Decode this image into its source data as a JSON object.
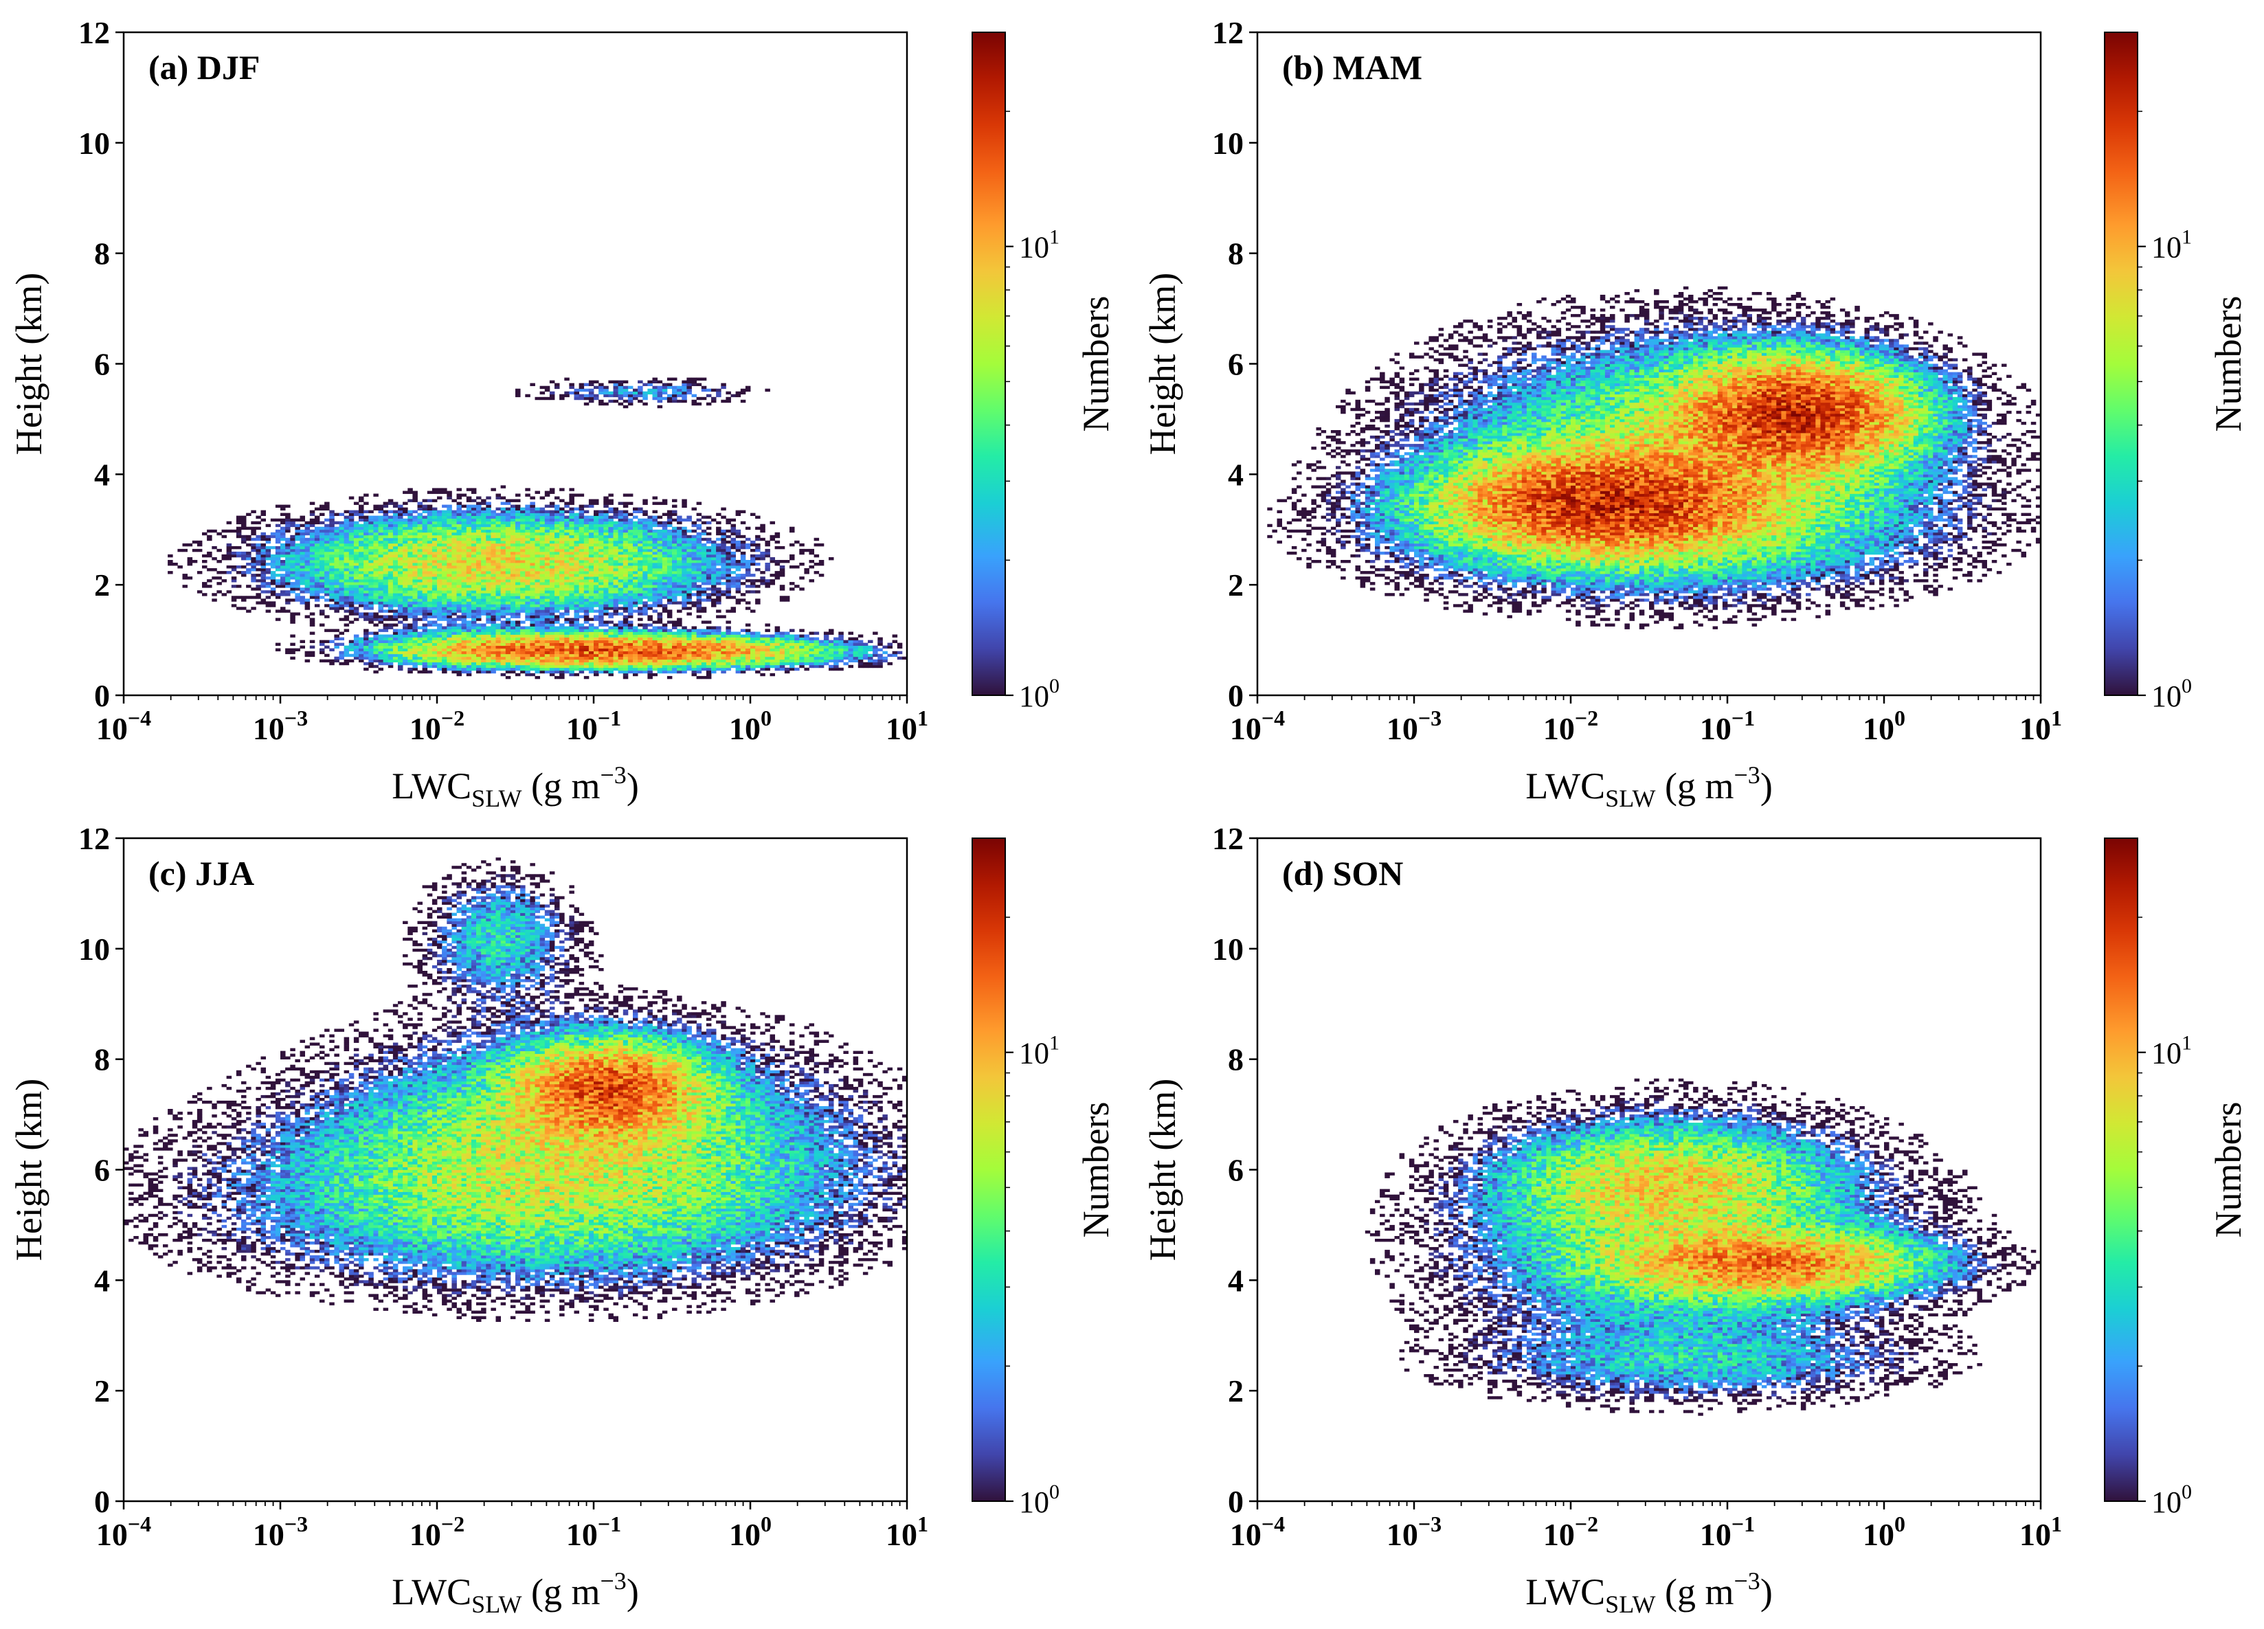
{
  "chart_data": [
    {
      "type": "heatmap",
      "panel": "a",
      "title": "(a) DJF",
      "xlabel": "LWC",
      "xlabel_sub": "SLW",
      "xlabel_unit_open": " (g m",
      "xlabel_unit_exp": "−3",
      "xlabel_unit_close": ")",
      "ylabel": "Height (km)",
      "xscale": "log",
      "xlim": [
        0.0001,
        10
      ],
      "ylim": [
        0,
        12
      ],
      "yticks": [
        "0",
        "2",
        "4",
        "6",
        "8",
        "10",
        "12"
      ],
      "xticks": [
        {
          "base": "10",
          "exp": "−4"
        },
        {
          "base": "10",
          "exp": "−3"
        },
        {
          "base": "10",
          "exp": "−2"
        },
        {
          "base": "10",
          "exp": "−1"
        },
        {
          "base": "10",
          "exp": "0"
        },
        {
          "base": "10",
          "exp": "1"
        }
      ],
      "colorbar": {
        "label": "Numbers",
        "scale": "log",
        "range": [
          1,
          30
        ],
        "ticks": [
          {
            "base": "10",
            "exp": "0"
          },
          {
            "base": "10",
            "exp": "1"
          }
        ]
      },
      "clusters": [
        {
          "log_x_center": -1.6,
          "height_km": 2.4,
          "log_x_spread": 0.85,
          "height_spread_km": 0.55,
          "peak_count": 8
        },
        {
          "log_x_center": -0.7,
          "height_km": 0.8,
          "log_x_spread": 0.75,
          "height_spread_km": 0.18,
          "peak_count": 14
        },
        {
          "log_x_center": -1.6,
          "height_km": 0.85,
          "log_x_spread": 0.55,
          "height_spread_km": 0.2,
          "peak_count": 6
        },
        {
          "log_x_center": -0.7,
          "height_km": 5.5,
          "log_x_spread": 0.45,
          "height_spread_km": 0.15,
          "peak_count": 2
        }
      ]
    },
    {
      "type": "heatmap",
      "panel": "b",
      "title": "(b) MAM",
      "xlabel": "LWC",
      "xlabel_sub": "SLW",
      "xlabel_unit_open": " (g m",
      "xlabel_unit_exp": "−3",
      "xlabel_unit_close": ")",
      "ylabel": "Height (km)",
      "xscale": "log",
      "xlim": [
        0.0001,
        10
      ],
      "ylim": [
        0,
        12
      ],
      "yticks": [
        "0",
        "2",
        "4",
        "6",
        "8",
        "10",
        "12"
      ],
      "xticks": [
        {
          "base": "10",
          "exp": "−4"
        },
        {
          "base": "10",
          "exp": "−3"
        },
        {
          "base": "10",
          "exp": "−2"
        },
        {
          "base": "10",
          "exp": "−1"
        },
        {
          "base": "10",
          "exp": "0"
        },
        {
          "base": "10",
          "exp": "1"
        }
      ],
      "colorbar": {
        "label": "Numbers",
        "scale": "log",
        "range": [
          1,
          30
        ],
        "ticks": [
          {
            "base": "10",
            "exp": "0"
          },
          {
            "base": "10",
            "exp": "1"
          }
        ]
      },
      "clusters": [
        {
          "log_x_center": -1.8,
          "height_km": 3.5,
          "log_x_spread": 0.6,
          "height_spread_km": 0.55,
          "peak_count": 16
        },
        {
          "log_x_center": -0.55,
          "height_km": 5.1,
          "log_x_spread": 0.45,
          "height_spread_km": 0.6,
          "peak_count": 18
        },
        {
          "log_x_center": -1.3,
          "height_km": 4.4,
          "log_x_spread": 1.0,
          "height_spread_km": 1.3,
          "peak_count": 5
        },
        {
          "log_x_center": -1.5,
          "height_km": 3.0,
          "log_x_spread": 1.1,
          "height_spread_km": 0.7,
          "peak_count": 3
        }
      ]
    },
    {
      "type": "heatmap",
      "panel": "c",
      "title": "(c) JJA",
      "xlabel": "LWC",
      "xlabel_sub": "SLW",
      "xlabel_unit_open": " (g m",
      "xlabel_unit_exp": "−3",
      "xlabel_unit_close": ")",
      "ylabel": "Height (km)",
      "xscale": "log",
      "xlim": [
        0.0001,
        10
      ],
      "ylim": [
        0,
        12
      ],
      "yticks": [
        "0",
        "2",
        "4",
        "6",
        "8",
        "10",
        "12"
      ],
      "xticks": [
        {
          "base": "10",
          "exp": "−4"
        },
        {
          "base": "10",
          "exp": "−3"
        },
        {
          "base": "10",
          "exp": "−2"
        },
        {
          "base": "10",
          "exp": "−1"
        },
        {
          "base": "10",
          "exp": "0"
        },
        {
          "base": "10",
          "exp": "1"
        }
      ],
      "colorbar": {
        "label": "Numbers",
        "scale": "log",
        "range": [
          1,
          30
        ],
        "ticks": [
          {
            "base": "10",
            "exp": "0"
          },
          {
            "base": "10",
            "exp": "1"
          }
        ]
      },
      "clusters": [
        {
          "log_x_center": -0.9,
          "height_km": 7.5,
          "log_x_spread": 0.35,
          "height_spread_km": 0.5,
          "peak_count": 14
        },
        {
          "log_x_center": -1.1,
          "height_km": 6.5,
          "log_x_spread": 1.0,
          "height_spread_km": 1.2,
          "peak_count": 5
        },
        {
          "log_x_center": -1.6,
          "height_km": 10.2,
          "log_x_spread": 0.3,
          "height_spread_km": 0.7,
          "peak_count": 3
        },
        {
          "log_x_center": -1.5,
          "height_km": 5.5,
          "log_x_spread": 1.3,
          "height_spread_km": 1.0,
          "peak_count": 3
        }
      ]
    },
    {
      "type": "heatmap",
      "panel": "d",
      "title": "(d) SON",
      "xlabel": "LWC",
      "xlabel_sub": "SLW",
      "xlabel_unit_open": " (g m",
      "xlabel_unit_exp": "−3",
      "xlabel_unit_close": ")",
      "ylabel": "Height (km)",
      "xscale": "log",
      "xlim": [
        0.0001,
        10
      ],
      "ylim": [
        0,
        12
      ],
      "yticks": [
        "0",
        "2",
        "4",
        "6",
        "8",
        "10",
        "12"
      ],
      "xticks": [
        {
          "base": "10",
          "exp": "−4"
        },
        {
          "base": "10",
          "exp": "−3"
        },
        {
          "base": "10",
          "exp": "−2"
        },
        {
          "base": "10",
          "exp": "−1"
        },
        {
          "base": "10",
          "exp": "0"
        },
        {
          "base": "10",
          "exp": "1"
        }
      ],
      "colorbar": {
        "label": "Numbers",
        "scale": "log",
        "range": [
          1,
          30
        ],
        "ticks": [
          {
            "base": "10",
            "exp": "0"
          },
          {
            "base": "10",
            "exp": "1"
          }
        ]
      },
      "clusters": [
        {
          "log_x_center": -0.7,
          "height_km": 4.3,
          "log_x_spread": 0.6,
          "height_spread_km": 0.35,
          "peak_count": 11
        },
        {
          "log_x_center": -1.4,
          "height_km": 5.8,
          "log_x_spread": 0.6,
          "height_spread_km": 0.6,
          "peak_count": 6
        },
        {
          "log_x_center": -1.3,
          "height_km": 4.7,
          "log_x_spread": 0.9,
          "height_spread_km": 1.3,
          "peak_count": 4
        },
        {
          "log_x_center": -1.2,
          "height_km": 2.5,
          "log_x_spread": 0.9,
          "height_spread_km": 0.4,
          "peak_count": 2
        }
      ]
    }
  ]
}
